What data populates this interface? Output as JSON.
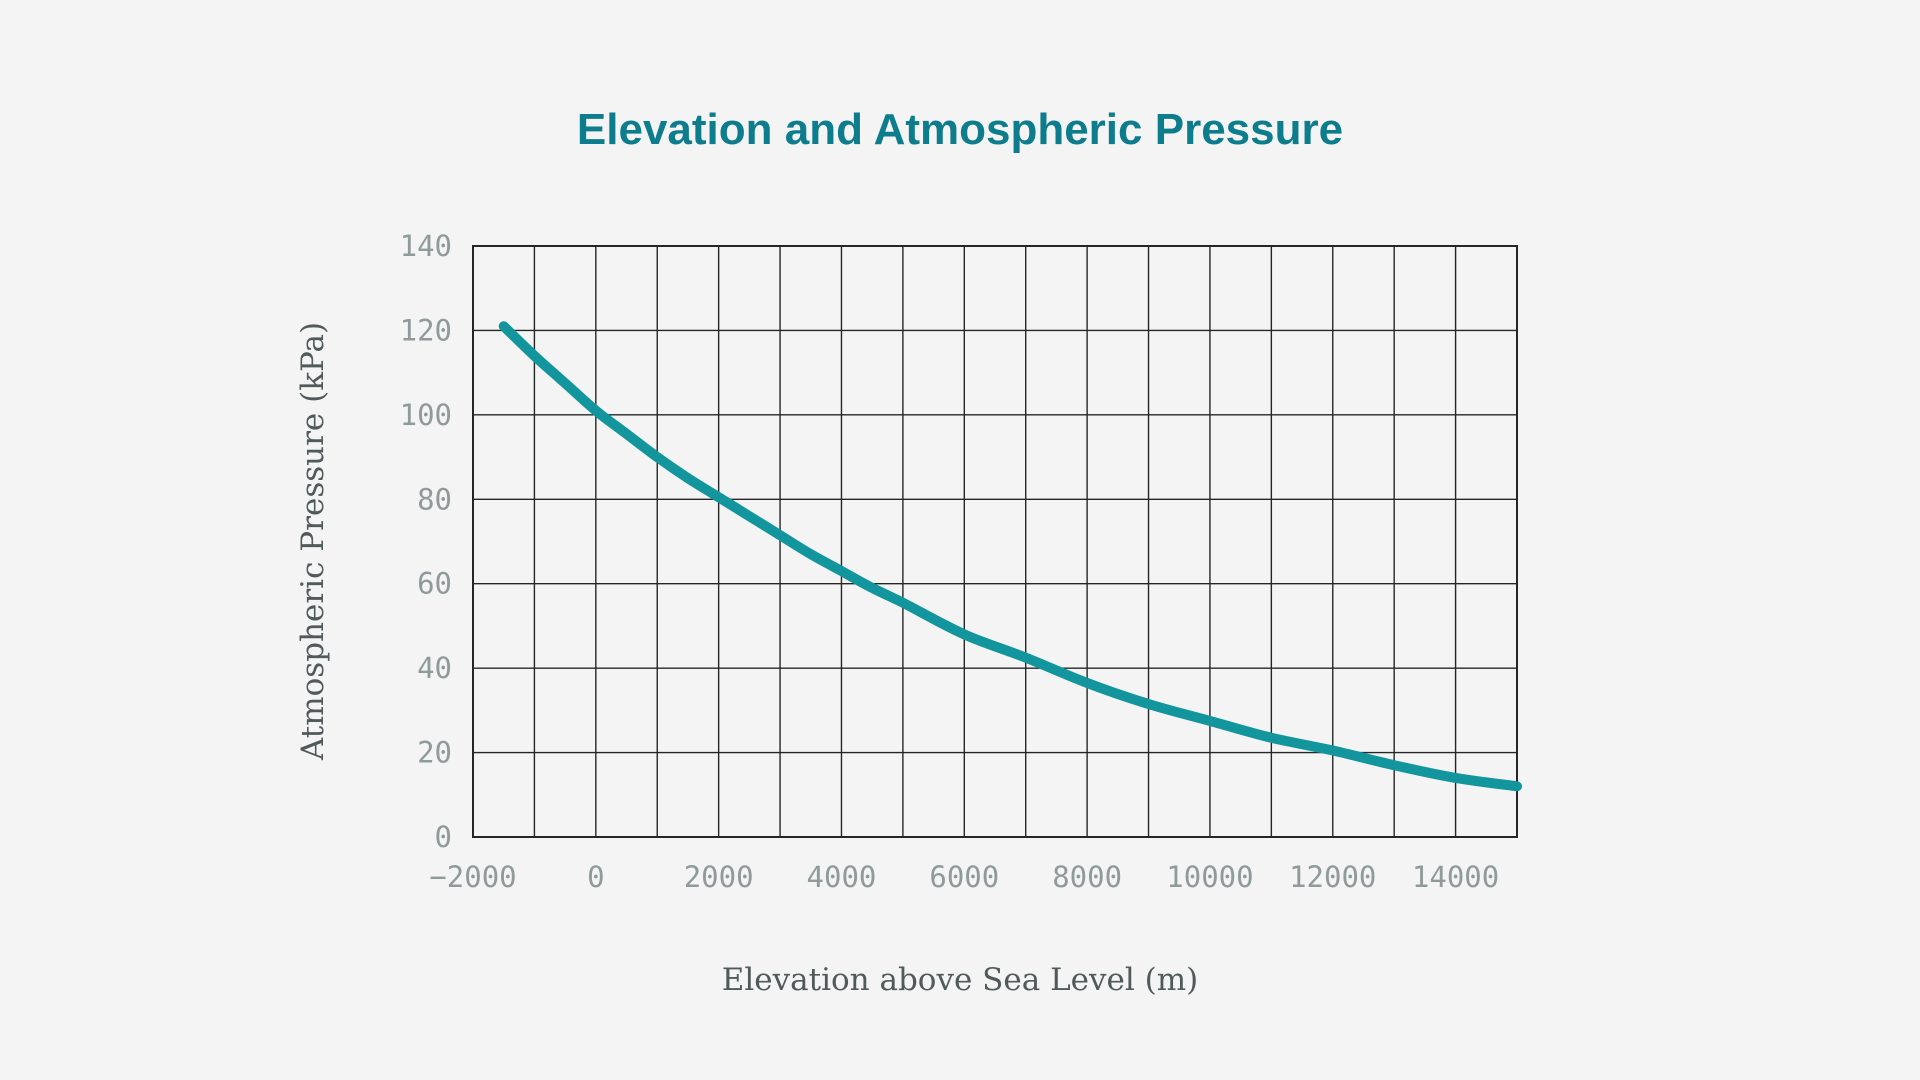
{
  "page": {
    "background": "#f4f4f4"
  },
  "chart_data": {
    "type": "line",
    "title": "Elevation and Atmospheric Pressure",
    "xlabel": "Elevation above Sea Level (m)",
    "ylabel": "Atmospheric Pressure (kPa)",
    "x": [
      -1500,
      -1000,
      -500,
      0,
      500,
      1000,
      1500,
      2000,
      2500,
      3000,
      3500,
      4000,
      4500,
      5000,
      6000,
      7000,
      8000,
      9000,
      10000,
      11000,
      12000,
      13000,
      14000,
      15000
    ],
    "y": [
      121,
      114,
      107.5,
      101,
      95.5,
      90,
      85,
      80.5,
      76,
      71.5,
      67,
      63,
      59,
      55.5,
      48,
      42.5,
      36.5,
      31.5,
      27.5,
      23.5,
      20.5,
      17,
      14,
      12
    ],
    "series_name": "Atmospheric Pressure",
    "xlim": [
      -2000,
      15000
    ],
    "ylim": [
      0,
      140
    ],
    "x_grid_step": 1000,
    "y_grid_step": 20,
    "x_tick_values": [
      -2000,
      0,
      2000,
      4000,
      6000,
      8000,
      10000,
      12000,
      14000
    ],
    "x_tick_labels": [
      "−2000",
      "0",
      "2000",
      "4000",
      "6000",
      "8000",
      "10000",
      "12000",
      "14000"
    ],
    "y_tick_values": [
      0,
      20,
      40,
      60,
      80,
      100,
      120,
      140
    ],
    "y_tick_labels": [
      "0",
      "20",
      "40",
      "60",
      "80",
      "100",
      "120",
      "140"
    ],
    "grid": true,
    "legend": "none",
    "colors": {
      "line": "#12959c",
      "title": "#0d7c8c",
      "grid": "#262626",
      "frame": "#262626",
      "tick_label": "#8f9a9a",
      "axis_title": "#515a5b"
    }
  }
}
